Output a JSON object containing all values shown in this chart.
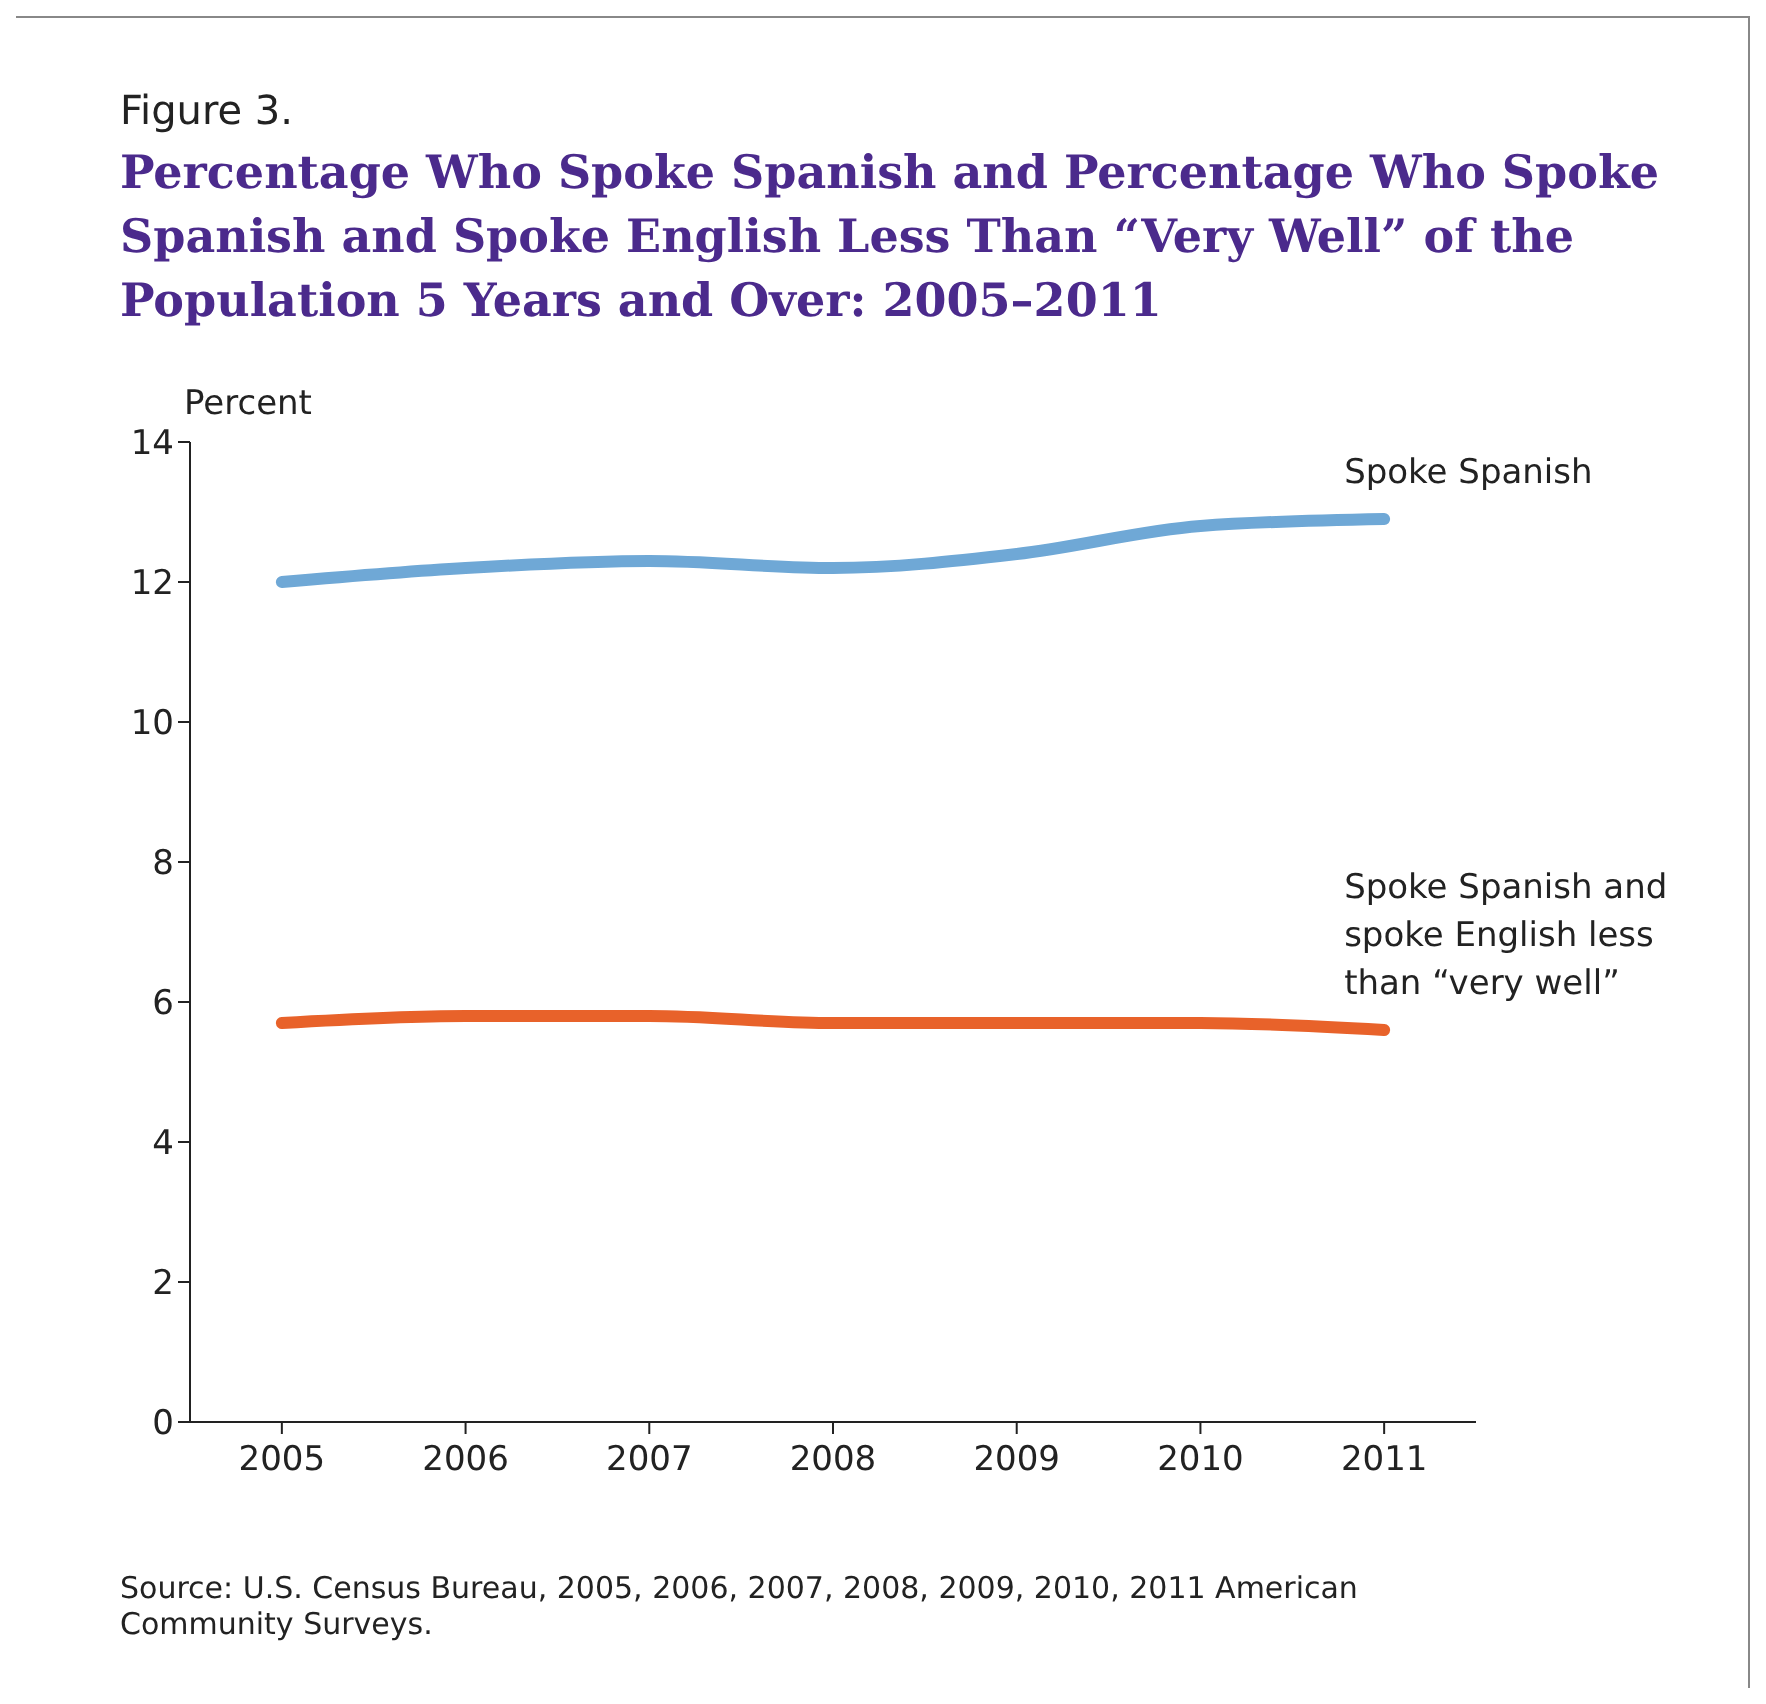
{
  "chart_data": {
    "type": "line",
    "subtitle": "Figure 3.",
    "title": "Percentage Who Spoke Spanish and Percentage Who Spoke Spanish and Spoke English Less Than “Very Well” of the Population 5 Years and Over: 2005–2011",
    "ylabel": "Percent",
    "x": [
      2005,
      2006,
      2007,
      2008,
      2009,
      2010,
      2011
    ],
    "series": [
      {
        "name": "Spoke Spanish",
        "color": "#6fa8d6",
        "values": [
          12.0,
          12.2,
          12.3,
          12.2,
          12.4,
          12.8,
          12.9
        ]
      },
      {
        "name": "Spoke Spanish and spoke English less than “very well”",
        "color": "#e8622a",
        "values": [
          5.7,
          5.8,
          5.8,
          5.7,
          5.7,
          5.7,
          5.6
        ]
      }
    ],
    "xlim": [
      2004.5,
      2011.5
    ],
    "xticks": [
      2005,
      2006,
      2007,
      2008,
      2009,
      2010,
      2011
    ],
    "ylim": [
      0,
      14
    ],
    "yticks": [
      0,
      2,
      4,
      6,
      8,
      10,
      12,
      14
    ],
    "grid": false,
    "legend": false,
    "marker": "none",
    "line_style": "solid",
    "annotations": [
      "Source: U.S. Census Bureau, 2005, 2006, 2007, 2008, 2009, 2010, 2011 American Community Surveys."
    ]
  }
}
